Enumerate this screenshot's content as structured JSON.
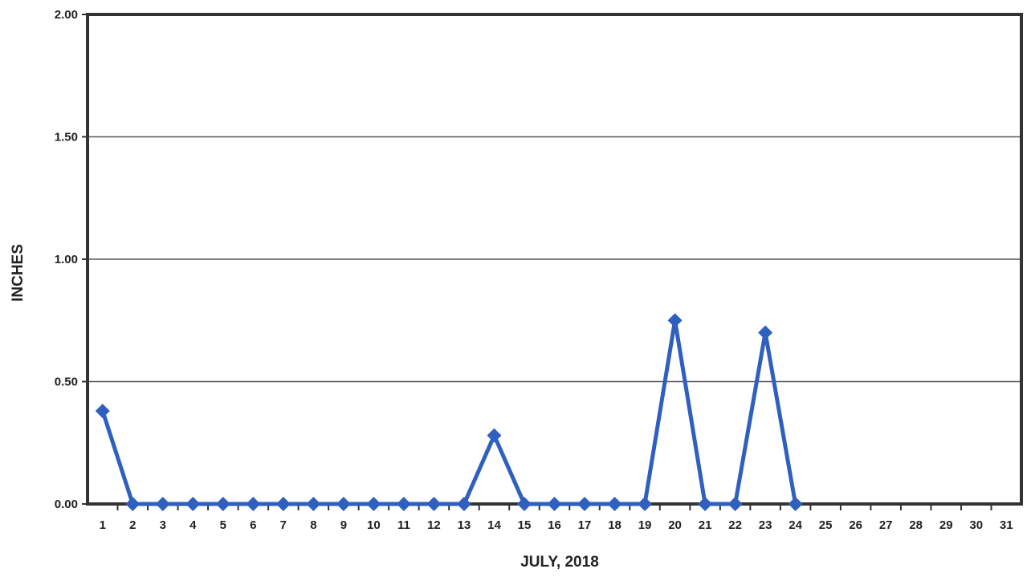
{
  "chart_data": {
    "type": "line",
    "xlabel": "JULY, 2018",
    "ylabel": "INCHES",
    "x": [
      1,
      2,
      3,
      4,
      5,
      6,
      7,
      8,
      9,
      10,
      11,
      12,
      13,
      14,
      15,
      16,
      17,
      18,
      19,
      20,
      21,
      22,
      23,
      24,
      25,
      26,
      27,
      28,
      29,
      30,
      31
    ],
    "y_ticks": [
      "0.00",
      "0.50",
      "1.00",
      "1.50",
      "2.00"
    ],
    "ylim": [
      0,
      2
    ],
    "grid": "horizontal",
    "series": [
      {
        "color": "#2f5fbf",
        "marker": "diamond",
        "x": [
          1,
          2,
          3,
          4,
          5,
          6,
          7,
          8,
          9,
          10,
          11,
          12,
          13,
          14,
          15,
          16,
          17,
          18,
          19,
          20,
          21,
          22,
          23,
          24
        ],
        "values": [
          0.38,
          0,
          0,
          0,
          0,
          0,
          0,
          0,
          0,
          0,
          0,
          0,
          0,
          0.28,
          0,
          0,
          0,
          0,
          0,
          0.75,
          0,
          0,
          0.7,
          0
        ]
      }
    ]
  }
}
